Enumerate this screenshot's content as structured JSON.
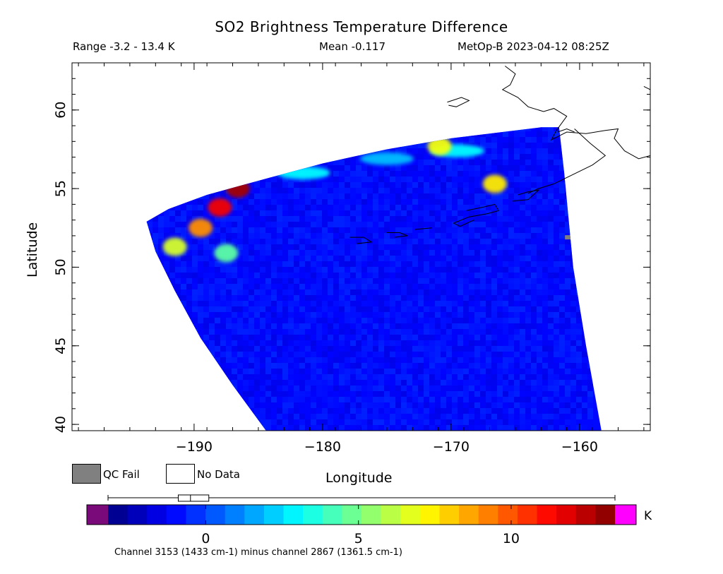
{
  "header": {
    "title": "SO2 Brightness Temperature Difference",
    "range": "Range -3.2 - 13.4 K",
    "mean": "Mean -0.117",
    "satellite": "MetOp-B 2023-04-12 08:25Z"
  },
  "legend": {
    "qc_fail": "QC Fail",
    "no_data": "No Data",
    "qc_fail_color": "#808080",
    "no_data_color": "#ffffff"
  },
  "colorbar": {
    "unit": "K",
    "min": -3.2,
    "max": 13.4,
    "ticks": [
      0,
      5,
      10
    ],
    "tick_labels": [
      "0",
      "5",
      "10"
    ],
    "under_color": "#7a0a7a",
    "over_color": "#ff00ff",
    "colormap": "jet",
    "boxplot": {
      "whisker_low": -3.2,
      "q1": -0.9,
      "median": -0.5,
      "q3": 0.1,
      "whisker_high": 13.4
    }
  },
  "footer": "Channel 3153 (1433 cm-1) minus channel 2867 (1361.5 cm-1)",
  "chart_data": {
    "type": "heatmap",
    "title": "SO2 Brightness Temperature Difference",
    "xlabel": "Longitude",
    "ylabel": "Latitude",
    "xlim": [
      -199.5,
      -154.5
    ],
    "ylim": [
      39.6,
      63.0
    ],
    "xticks": [
      -190,
      -180,
      -170,
      -160
    ],
    "xtick_labels": [
      "−190",
      "−180",
      "−170",
      "−160"
    ],
    "yticks": [
      40,
      45,
      50,
      55,
      60
    ],
    "ytick_labels": [
      "40",
      "45",
      "50",
      "55",
      "60"
    ],
    "swath_outline": [
      [
        -193.7,
        52.9
      ],
      [
        -192.0,
        53.7
      ],
      [
        -189.0,
        54.6
      ],
      [
        -185.0,
        55.5
      ],
      [
        -180.0,
        56.6
      ],
      [
        -175.0,
        57.5
      ],
      [
        -170.0,
        58.2
      ],
      [
        -165.0,
        58.7
      ],
      [
        -163.0,
        58.9
      ],
      [
        -161.6,
        58.9
      ],
      [
        -161.2,
        56.0
      ],
      [
        -160.5,
        50.0
      ],
      [
        -159.5,
        45.0
      ],
      [
        -158.3,
        39.6
      ],
      [
        -184.4,
        39.6
      ],
      [
        -187.0,
        42.5
      ],
      [
        -189.5,
        45.5
      ],
      [
        -191.5,
        48.5
      ],
      [
        -193.0,
        51.0
      ]
    ],
    "background_value_K": -1.0,
    "features": [
      {
        "name": "SO2 plume",
        "lon": -188.0,
        "lat": 53.8,
        "value_K": 11.5
      },
      {
        "name": "SO2 plume",
        "lon": -186.6,
        "lat": 55.0,
        "value_K": 12.8
      },
      {
        "name": "SO2 plume",
        "lon": -189.5,
        "lat": 52.5,
        "value_K": 9.0
      },
      {
        "name": "SO2 plume",
        "lon": -191.5,
        "lat": 51.3,
        "value_K": 6.5
      },
      {
        "name": "SO2 plume",
        "lon": -187.5,
        "lat": 50.9,
        "value_K": 4.5
      },
      {
        "name": "SO2 arc",
        "lon": -181.5,
        "lat": 56.0,
        "value_K": 3.0
      },
      {
        "name": "SO2 arc",
        "lon": -175.0,
        "lat": 56.9,
        "value_K": 2.0
      },
      {
        "name": "SO2 arc",
        "lon": -169.5,
        "lat": 57.4,
        "value_K": 3.0
      },
      {
        "name": "SO2 hotspot",
        "lon": -166.6,
        "lat": 55.3,
        "value_K": 7.5
      },
      {
        "name": "SO2 hotspot",
        "lon": -170.9,
        "lat": 57.7,
        "value_K": 7.0
      },
      {
        "name": "QC fail pixel",
        "lon": -160.7,
        "lat": 51.9,
        "value_K": null
      }
    ],
    "legend_placement": "bottom-left",
    "grid": false
  }
}
